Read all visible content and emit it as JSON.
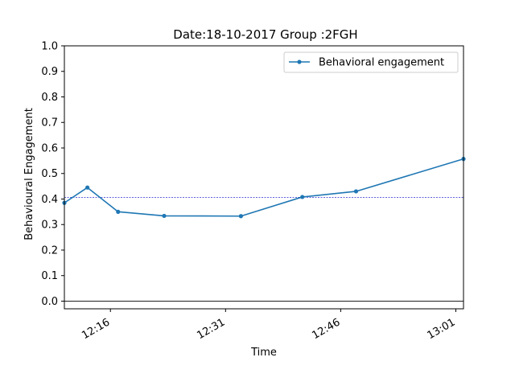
{
  "chart_data": {
    "type": "line",
    "title": "Date:18-10-2017 Group :2FGH",
    "xlabel": "Time",
    "ylabel": "Behavioural Engagement",
    "xlim": [
      "12:10",
      "13:02"
    ],
    "ylim": [
      -0.03,
      1.0
    ],
    "x_ticks": [
      "12:16",
      "12:31",
      "12:46",
      "13:01"
    ],
    "y_ticks": [
      "0.0",
      "0.1",
      "0.2",
      "0.3",
      "0.4",
      "0.5",
      "0.6",
      "0.7",
      "0.8",
      "0.9",
      "1.0"
    ],
    "grid": false,
    "legend": {
      "position": "top-right",
      "entries": [
        "Behavioral engagement"
      ]
    },
    "series": [
      {
        "name": "Behavioral engagement",
        "color": "#1f77b4",
        "marker": "circle",
        "x": [
          "12:10",
          "12:13",
          "12:17",
          "12:23",
          "12:33",
          "12:41",
          "12:48",
          "13:02"
        ],
        "y": [
          0.385,
          0.445,
          0.35,
          0.334,
          0.333,
          0.408,
          0.43,
          0.557
        ]
      }
    ],
    "reference_lines": [
      {
        "orientation": "horizontal",
        "y": 0.407,
        "color": "#0000cc",
        "style": "dashed"
      },
      {
        "orientation": "horizontal",
        "y": 0.0,
        "color": "#000000",
        "style": "solid"
      }
    ]
  }
}
